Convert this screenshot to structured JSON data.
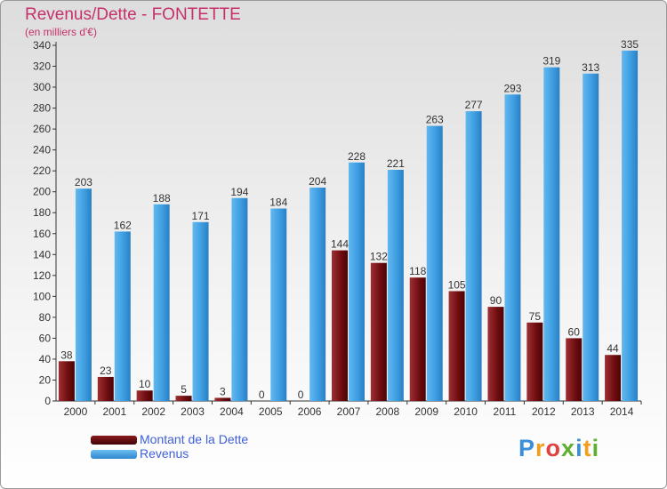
{
  "title": "Revenus/Dette - FONTETTE",
  "subtitle": "(en milliers d'€)",
  "logo": "Proxiti",
  "colors": {
    "dette": "#6e0c0f",
    "revenus": "#3b9be0",
    "title": "#c6316c",
    "legend_text": "#4060d8"
  },
  "legend": [
    {
      "label": "Montant de la Dette",
      "color": "#6e0c0f"
    },
    {
      "label": "Revenus",
      "color": "#3b9be0"
    }
  ],
  "chart_data": {
    "type": "bar",
    "title": "Revenus/Dette - FONTETTE",
    "ylabel": "(en milliers d'€)",
    "xlabel": "",
    "ylim": [
      0,
      340
    ],
    "ytick_step": 20,
    "grid": false,
    "legend_position": "bottom-left",
    "categories": [
      "2000",
      "2001",
      "2002",
      "2003",
      "2004",
      "2005",
      "2006",
      "2007",
      "2008",
      "2009",
      "2010",
      "2011",
      "2012",
      "2013",
      "2014"
    ],
    "series": [
      {
        "name": "Montant de la Dette",
        "color": "#6e0c0f",
        "values": [
          38,
          23,
          10,
          5,
          3,
          0,
          0,
          144,
          132,
          118,
          105,
          90,
          75,
          60,
          44
        ]
      },
      {
        "name": "Revenus",
        "color": "#3b9be0",
        "values": [
          203,
          162,
          188,
          171,
          194,
          184,
          204,
          228,
          221,
          263,
          277,
          293,
          319,
          313,
          335
        ]
      }
    ]
  }
}
